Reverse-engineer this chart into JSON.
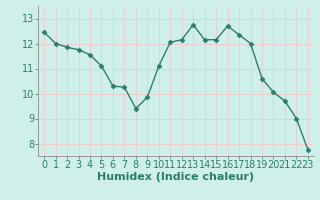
{
  "x": [
    0,
    1,
    2,
    3,
    4,
    5,
    6,
    7,
    8,
    9,
    10,
    11,
    12,
    13,
    14,
    15,
    16,
    17,
    18,
    19,
    20,
    21,
    22,
    23
  ],
  "y": [
    12.45,
    12.0,
    11.85,
    11.75,
    11.55,
    11.1,
    10.3,
    10.25,
    9.4,
    9.85,
    11.1,
    12.05,
    12.15,
    12.75,
    12.15,
    12.15,
    12.7,
    12.35,
    12.0,
    10.6,
    10.05,
    9.7,
    9.0,
    7.75
  ],
  "line_color": "#2d7d6d",
  "marker": "D",
  "marker_size": 2.5,
  "bg_color": "#cff0ea",
  "grid_color": "#f0c8c8",
  "xlabel": "Humidex (Indice chaleur)",
  "ylim": [
    7.5,
    13.5
  ],
  "xlim": [
    -0.5,
    23.5
  ],
  "yticks": [
    8,
    9,
    10,
    11,
    12,
    13
  ],
  "xticks": [
    0,
    1,
    2,
    3,
    4,
    5,
    6,
    7,
    8,
    9,
    10,
    11,
    12,
    13,
    14,
    15,
    16,
    17,
    18,
    19,
    20,
    21,
    22,
    23
  ],
  "xlabel_color": "#2d7d6d",
  "xlabel_fontsize": 8,
  "tick_fontsize": 7,
  "tick_color": "#2d7d6d",
  "spine_color": "#8a8a8a",
  "linewidth": 1.0
}
